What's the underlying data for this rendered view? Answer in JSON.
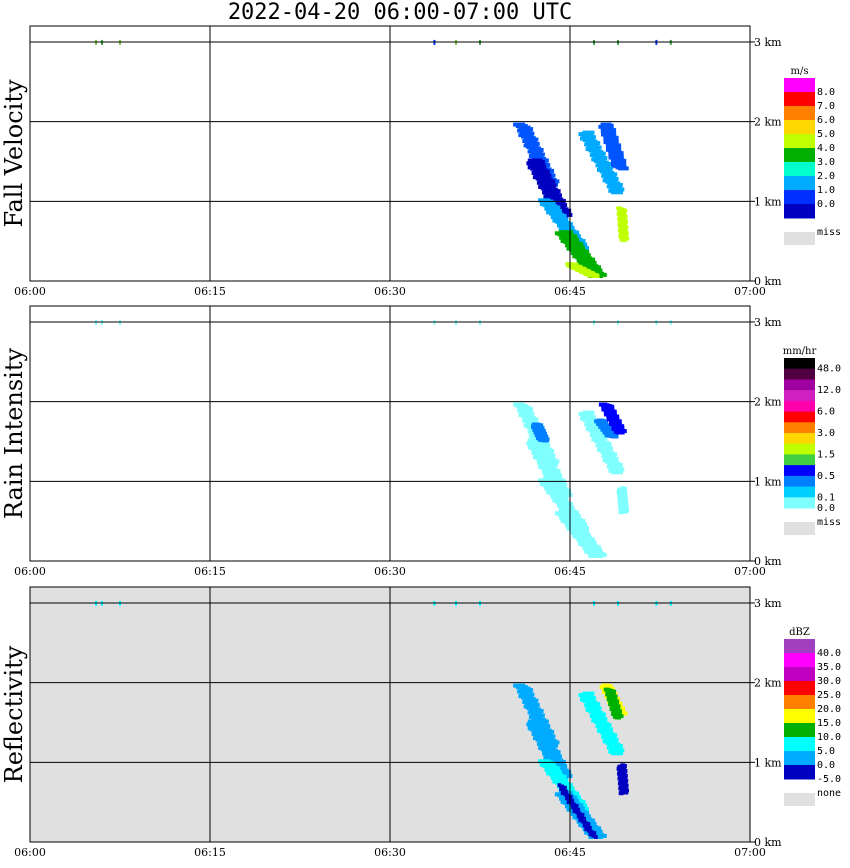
{
  "title": "2022-04-20   06:00-07:00 UTC",
  "x_ticks": [
    "06:00",
    "06:15",
    "06:30",
    "06:45",
    "07:00"
  ],
  "y_ticks": [
    "0 km",
    "1 km",
    "2 km",
    "3 km"
  ],
  "chart_data": [
    {
      "type": "heatmap",
      "panel_label": "Fall Velocity",
      "unit": "m/s",
      "background": "#ffffff",
      "xlim": [
        "06:00",
        "07:00"
      ],
      "ylim_km": [
        0,
        3.2
      ],
      "colorbar": {
        "labels": [
          "8.0",
          "7.0",
          "6.0",
          "5.0",
          "4.0",
          "3.0",
          "2.0",
          "1.0",
          "0.0"
        ],
        "colors": [
          "#ff00ff",
          "#ff0000",
          "#ff7f00",
          "#ffd700",
          "#c0ff00",
          "#00b000",
          "#00ffcc",
          "#00aaff",
          "#0030ff",
          "#0000c0"
        ],
        "missing_label": "miss",
        "missing_color": "#e0e0e0"
      },
      "bands": [
        {
          "t_start_min": 41.0,
          "t_end_min": 43.5,
          "z_start_km": 1.95,
          "z_end_km": 1.2,
          "color": "#0055ff",
          "width_min": 1.0
        },
        {
          "t_start_min": 42.0,
          "t_end_min": 44.5,
          "z_start_km": 1.5,
          "z_end_km": 0.8,
          "color": "#0000c0",
          "width_min": 1.2
        },
        {
          "t_start_min": 43.0,
          "t_end_min": 46.0,
          "z_start_km": 1.0,
          "z_end_km": 0.4,
          "color": "#00aaff",
          "width_min": 1.0
        },
        {
          "t_start_min": 44.5,
          "t_end_min": 47.3,
          "z_start_km": 0.6,
          "z_end_km": 0.05,
          "color": "#00b000",
          "width_min": 1.2
        },
        {
          "t_start_min": 45.0,
          "t_end_min": 47.0,
          "z_start_km": 0.2,
          "z_end_km": 0.05,
          "color": "#c0ff00",
          "width_min": 0.6
        },
        {
          "t_start_min": 46.3,
          "t_end_min": 49.0,
          "z_start_km": 1.85,
          "z_end_km": 1.1,
          "color": "#00aaff",
          "width_min": 1.0
        },
        {
          "t_start_min": 48.0,
          "t_end_min": 49.2,
          "z_start_km": 1.95,
          "z_end_km": 1.4,
          "color": "#0055ff",
          "width_min": 0.9
        },
        {
          "t_start_min": 49.3,
          "t_end_min": 49.5,
          "z_start_km": 0.9,
          "z_end_km": 0.5,
          "color": "#c0ff00",
          "width_min": 0.4
        }
      ],
      "top_marks": [
        {
          "t_min": 5.5,
          "color": "#80c040"
        },
        {
          "t_min": 6.0,
          "color": "#40a040"
        },
        {
          "t_min": 7.5,
          "color": "#80c040"
        },
        {
          "t_min": 33.7,
          "color": "#0030ff"
        },
        {
          "t_min": 35.5,
          "color": "#80c040"
        },
        {
          "t_min": 37.5,
          "color": "#40a040"
        },
        {
          "t_min": 47.0,
          "color": "#40a040"
        },
        {
          "t_min": 49.0,
          "color": "#40a040"
        },
        {
          "t_min": 52.2,
          "color": "#0030ff"
        },
        {
          "t_min": 53.4,
          "color": "#40a040"
        }
      ]
    },
    {
      "type": "heatmap",
      "panel_label": "Rain Intensity",
      "unit": "mm/hr",
      "background": "#ffffff",
      "xlim": [
        "06:00",
        "07:00"
      ],
      "ylim_km": [
        0,
        3.2
      ],
      "colorbar": {
        "labels": [
          "48.0",
          "",
          "12.0",
          "",
          "6.0",
          "",
          "3.0",
          "",
          "1.5",
          "",
          "0.5",
          "",
          "0.1",
          "0.0"
        ],
        "colors": [
          "#000000",
          "#500040",
          "#a000a0",
          "#d020c0",
          "#ff00aa",
          "#ff0000",
          "#ff7f00",
          "#ffd700",
          "#c0ff00",
          "#40d040",
          "#0000ff",
          "#0080ff",
          "#00d0ff",
          "#80ffff"
        ],
        "missing_label": "miss",
        "missing_color": "#e0e0e0"
      },
      "bands": [
        {
          "t_start_min": 41.0,
          "t_end_min": 43.5,
          "z_start_km": 1.95,
          "z_end_km": 1.2,
          "color": "#80ffff",
          "width_min": 1.0
        },
        {
          "t_start_min": 42.0,
          "t_end_min": 44.5,
          "z_start_km": 1.5,
          "z_end_km": 0.8,
          "color": "#80ffff",
          "width_min": 1.2
        },
        {
          "t_start_min": 43.0,
          "t_end_min": 46.0,
          "z_start_km": 1.0,
          "z_end_km": 0.4,
          "color": "#80ffff",
          "width_min": 1.0
        },
        {
          "t_start_min": 44.5,
          "t_end_min": 47.3,
          "z_start_km": 0.6,
          "z_end_km": 0.05,
          "color": "#80ffff",
          "width_min": 1.2
        },
        {
          "t_start_min": 42.2,
          "t_end_min": 42.8,
          "z_start_km": 1.7,
          "z_end_km": 1.5,
          "color": "#0080ff",
          "width_min": 0.6
        },
        {
          "t_start_min": 46.3,
          "t_end_min": 49.0,
          "z_start_km": 1.85,
          "z_end_km": 1.1,
          "color": "#80ffff",
          "width_min": 1.0
        },
        {
          "t_start_min": 47.5,
          "t_end_min": 48.5,
          "z_start_km": 1.75,
          "z_end_km": 1.55,
          "color": "#0080ff",
          "width_min": 0.6
        },
        {
          "t_start_min": 48.0,
          "t_end_min": 49.2,
          "z_start_km": 1.95,
          "z_end_km": 1.6,
          "color": "#0000ff",
          "width_min": 0.7
        },
        {
          "t_start_min": 49.3,
          "t_end_min": 49.5,
          "z_start_km": 0.9,
          "z_end_km": 0.6,
          "color": "#80ffff",
          "width_min": 0.4
        }
      ],
      "top_marks": [
        {
          "t_min": 5.5,
          "color": "#80ffff"
        },
        {
          "t_min": 6.0,
          "color": "#80ffff"
        },
        {
          "t_min": 7.5,
          "color": "#80ffff"
        },
        {
          "t_min": 33.7,
          "color": "#80ffff"
        },
        {
          "t_min": 35.5,
          "color": "#80ffff"
        },
        {
          "t_min": 37.5,
          "color": "#80ffff"
        },
        {
          "t_min": 47.0,
          "color": "#80ffff"
        },
        {
          "t_min": 49.0,
          "color": "#80ffff"
        },
        {
          "t_min": 52.2,
          "color": "#80ffff"
        },
        {
          "t_min": 53.4,
          "color": "#80ffff"
        }
      ]
    },
    {
      "type": "heatmap",
      "panel_label": "Reflectivity",
      "unit": "dBZ",
      "background": "#e0e0e0",
      "xlim": [
        "06:00",
        "07:00"
      ],
      "ylim_km": [
        0,
        3.2
      ],
      "colorbar": {
        "labels": [
          "40.0",
          "35.0",
          "30.0",
          "25.0",
          "20.0",
          "15.0",
          "10.0",
          "5.0",
          "0.0",
          "-5.0"
        ],
        "colors": [
          "#a040c0",
          "#ff00ff",
          "#c000c0",
          "#ff0000",
          "#ff7f00",
          "#ffff00",
          "#00b000",
          "#00ffff",
          "#00aaff",
          "#0000c0"
        ],
        "missing_label": "none",
        "missing_color": "#e0e0e0"
      },
      "bands": [
        {
          "t_start_min": 41.0,
          "t_end_min": 43.5,
          "z_start_km": 1.95,
          "z_end_km": 1.2,
          "color": "#00aaff",
          "width_min": 1.0
        },
        {
          "t_start_min": 42.0,
          "t_end_min": 44.5,
          "z_start_km": 1.5,
          "z_end_km": 0.8,
          "color": "#00aaff",
          "width_min": 1.2
        },
        {
          "t_start_min": 43.0,
          "t_end_min": 46.0,
          "z_start_km": 1.0,
          "z_end_km": 0.4,
          "color": "#00ffff",
          "width_min": 1.0
        },
        {
          "t_start_min": 44.5,
          "t_end_min": 47.3,
          "z_start_km": 0.6,
          "z_end_km": 0.05,
          "color": "#00aaff",
          "width_min": 1.2
        },
        {
          "t_start_min": 44.2,
          "t_end_min": 47.0,
          "z_start_km": 0.7,
          "z_end_km": 0.05,
          "color": "#0000c0",
          "width_min": 0.3
        },
        {
          "t_start_min": 46.3,
          "t_end_min": 49.0,
          "z_start_km": 1.85,
          "z_end_km": 1.1,
          "color": "#00ffff",
          "width_min": 1.0
        },
        {
          "t_start_min": 48.0,
          "t_end_min": 49.2,
          "z_start_km": 1.95,
          "z_end_km": 1.6,
          "color": "#ffff00",
          "width_min": 0.7
        },
        {
          "t_start_min": 48.3,
          "t_end_min": 49.0,
          "z_start_km": 1.9,
          "z_end_km": 1.55,
          "color": "#00b000",
          "width_min": 0.5
        },
        {
          "t_start_min": 49.3,
          "t_end_min": 49.5,
          "z_start_km": 0.95,
          "z_end_km": 0.6,
          "color": "#0000c0",
          "width_min": 0.4
        }
      ],
      "top_marks": [
        {
          "t_min": 5.5,
          "color": "#00ffff"
        },
        {
          "t_min": 6.0,
          "color": "#00ffff"
        },
        {
          "t_min": 7.5,
          "color": "#00ffff"
        },
        {
          "t_min": 33.7,
          "color": "#00ffff"
        },
        {
          "t_min": 35.5,
          "color": "#00ffff"
        },
        {
          "t_min": 37.5,
          "color": "#00ffff"
        },
        {
          "t_min": 47.0,
          "color": "#00ffff"
        },
        {
          "t_min": 49.0,
          "color": "#00ffff"
        },
        {
          "t_min": 52.2,
          "color": "#00ffff"
        },
        {
          "t_min": 53.4,
          "color": "#00ffff"
        }
      ]
    }
  ]
}
